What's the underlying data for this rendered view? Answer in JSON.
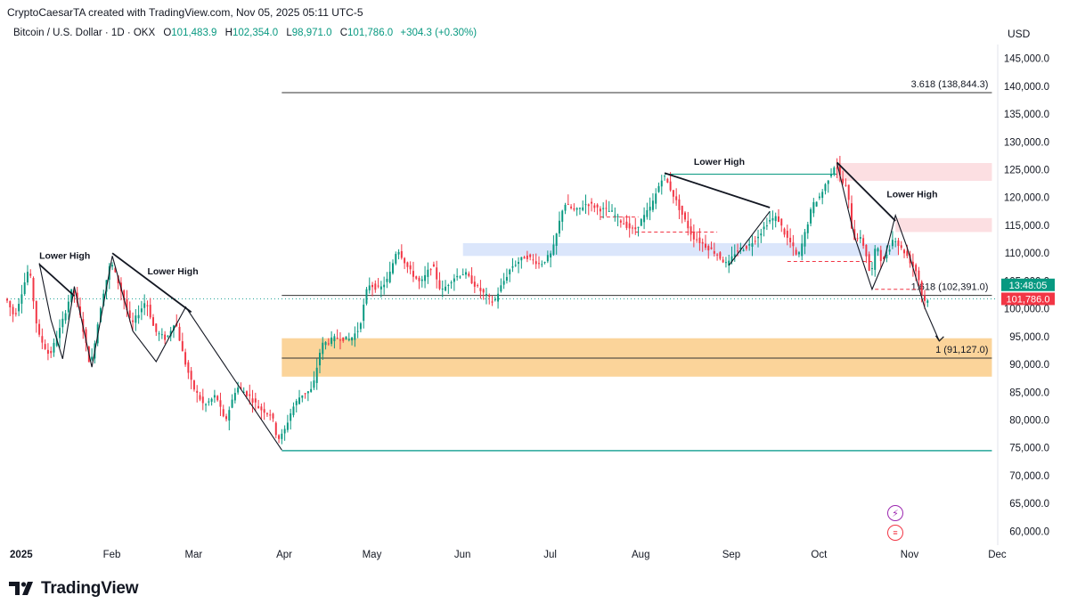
{
  "header": {
    "attribution": "CryptoCaesarTA created with TradingView.com, Nov 05, 2025 05:11 UTC-5",
    "symbol": "Bitcoin / U.S. Dollar · 1D · OKX",
    "open_label": "O",
    "open": "101,483.9",
    "high_label": "H",
    "high": "102,354.0",
    "low_label": "L",
    "low": "98,971.0",
    "close_label": "C",
    "close": "101,786.0",
    "change": "+304.3 (+0.30%)",
    "currency": "USD"
  },
  "brand": {
    "name": "TradingView"
  },
  "colors": {
    "up": "#089981",
    "down": "#f23645",
    "zone_red": "#fcdfe2",
    "zone_blue": "#dbe6fb",
    "zone_orange": "#fbd49a",
    "teal_line": "#26a69a"
  },
  "chart_data": {
    "type": "candlestick",
    "title": "Bitcoin / U.S. Dollar · 1D · OKX",
    "ylabel": "USD",
    "ylim": [
      57500,
      147500
    ],
    "y_ticks": [
      "60,000.0",
      "65,000.0",
      "70,000.0",
      "75,000.0",
      "80,000.0",
      "85,000.0",
      "90,000.0",
      "95,000.0",
      "100,000.0",
      "105,000.0",
      "110,000.0",
      "115,000.0",
      "120,000.0",
      "125,000.0",
      "130,000.0",
      "135,000.0",
      "140,000.0",
      "145,000.0"
    ],
    "y_tick_values": [
      60000,
      65000,
      70000,
      75000,
      80000,
      85000,
      90000,
      95000,
      100000,
      105000,
      110000,
      115000,
      120000,
      125000,
      130000,
      135000,
      140000,
      145000
    ],
    "x_ticks": [
      "2025",
      "Feb",
      "Mar",
      "Apr",
      "May",
      "Jun",
      "Jul",
      "Aug",
      "Sep",
      "Oct",
      "Nov",
      "Dec"
    ],
    "x_tick_days": [
      0,
      31,
      59,
      90,
      120,
      151,
      181,
      212,
      243,
      273,
      304,
      334
    ],
    "x_range_days": [
      -3,
      336
    ],
    "price_path": [
      [
        -3,
        102000
      ],
      [
        0,
        98500
      ],
      [
        5,
        107500
      ],
      [
        8,
        95500
      ],
      [
        12,
        91500
      ],
      [
        16,
        97000
      ],
      [
        20,
        104000
      ],
      [
        23,
        97500
      ],
      [
        26,
        89500
      ],
      [
        30,
        102000
      ],
      [
        33,
        108500
      ],
      [
        37,
        102500
      ],
      [
        40,
        97000
      ],
      [
        45,
        101500
      ],
      [
        48,
        96000
      ],
      [
        52,
        94500
      ],
      [
        55,
        98000
      ],
      [
        58,
        91000
      ],
      [
        61,
        86000
      ],
      [
        65,
        82500
      ],
      [
        69,
        84500
      ],
      [
        72,
        79500
      ],
      [
        76,
        86000
      ],
      [
        80,
        84500
      ],
      [
        84,
        82000
      ],
      [
        88,
        81000
      ],
      [
        90,
        76500
      ],
      [
        92,
        77500
      ],
      [
        95,
        82000
      ],
      [
        98,
        84500
      ],
      [
        102,
        85500
      ],
      [
        105,
        93500
      ],
      [
        110,
        94800
      ],
      [
        115,
        94500
      ],
      [
        118,
        96500
      ],
      [
        121,
        104500
      ],
      [
        125,
        103500
      ],
      [
        128,
        105500
      ],
      [
        131,
        111000
      ],
      [
        135,
        107000
      ],
      [
        139,
        104500
      ],
      [
        143,
        108000
      ],
      [
        146,
        103000
      ],
      [
        150,
        105500
      ],
      [
        154,
        106500
      ],
      [
        158,
        104000
      ],
      [
        162,
        102000
      ],
      [
        164,
        101000
      ],
      [
        166,
        103500
      ],
      [
        170,
        107500
      ],
      [
        175,
        109500
      ],
      [
        180,
        108000
      ],
      [
        184,
        110000
      ],
      [
        188,
        119000
      ],
      [
        192,
        117500
      ],
      [
        196,
        119000
      ],
      [
        200,
        118000
      ],
      [
        204,
        117500
      ],
      [
        208,
        115500
      ],
      [
        212,
        114000
      ],
      [
        214,
        115500
      ],
      [
        218,
        118500
      ],
      [
        222,
        124200
      ],
      [
        225,
        121000
      ],
      [
        228,
        117500
      ],
      [
        232,
        113000
      ],
      [
        236,
        111500
      ],
      [
        240,
        110000
      ],
      [
        244,
        107800
      ],
      [
        247,
        110500
      ],
      [
        251,
        111200
      ],
      [
        255,
        113500
      ],
      [
        258,
        115800
      ],
      [
        261,
        116500
      ],
      [
        264,
        113000
      ],
      [
        266,
        111500
      ],
      [
        268,
        109000
      ],
      [
        270,
        112500
      ],
      [
        273,
        118500
      ],
      [
        276,
        120500
      ],
      [
        279,
        124000
      ],
      [
        281,
        126200
      ],
      [
        283,
        123000
      ],
      [
        285,
        121500
      ],
      [
        287,
        112500
      ],
      [
        289,
        113000
      ],
      [
        291,
        111000
      ],
      [
        293,
        105500
      ],
      [
        295,
        112000
      ],
      [
        297,
        108000
      ],
      [
        299,
        110500
      ],
      [
        301,
        113000
      ],
      [
        303,
        111000
      ],
      [
        305,
        110000
      ],
      [
        307,
        108000
      ],
      [
        309,
        106500
      ],
      [
        310,
        104000
      ],
      [
        311,
        101000
      ],
      [
        312,
        101786
      ]
    ],
    "levels": [
      {
        "label": "3.618 (138,844.3)",
        "value": 138844.3
      },
      {
        "label": "1.618 (102,391.0)",
        "value": 102391.0
      },
      {
        "label": "1 (91,127.0)",
        "value": 91127.0
      },
      {
        "label": "",
        "value": 74500
      }
    ],
    "zones": [
      {
        "name": "red-zone-top",
        "from": 123000,
        "to": 126200
      },
      {
        "name": "red-zone-mid",
        "from": 113800,
        "to": 116300
      },
      {
        "name": "blue-zone",
        "from": 109500,
        "to": 111800
      },
      {
        "name": "orange-zone",
        "from": 87800,
        "to": 94700
      }
    ],
    "annotations": [
      {
        "text": "Lower High",
        "day": 8,
        "value": 109000
      },
      {
        "text": "Lower High",
        "day": 45,
        "value": 106200
      },
      {
        "text": "Lower High",
        "day": 232,
        "value": 125900
      },
      {
        "text": "Lower High",
        "day": 298,
        "value": 120000
      }
    ],
    "price_labels": {
      "countdown": "13:48:05",
      "countdown_value": 104300,
      "current": "101,786.0",
      "current_value": 101786.0
    }
  }
}
